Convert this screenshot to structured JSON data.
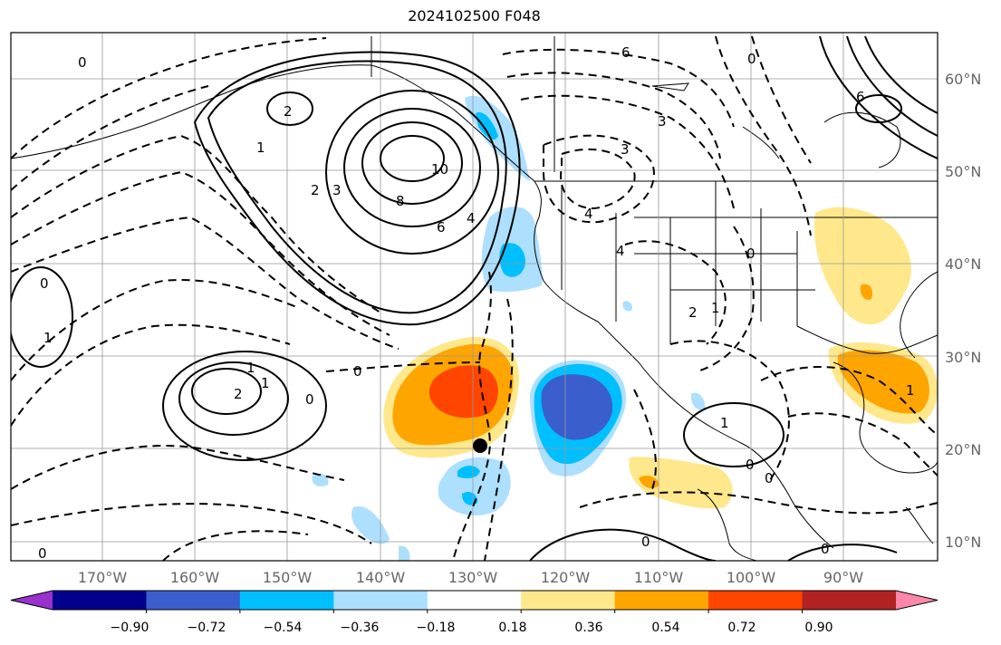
{
  "title": "2024102500 F048",
  "lat_labels": [
    "60°N",
    "50°N",
    "40°N",
    "30°N",
    "20°N",
    "10°N"
  ],
  "lon_labels": [
    "170°W",
    "160°W",
    "150°W",
    "140°W",
    "130°W",
    "120°W",
    "110°W",
    "100°W",
    "90°W"
  ],
  "colorbar": {
    "colors": [
      "#9932CC",
      "#00008B",
      "#3A5FCD",
      "#00BFFF",
      "#ADDFFF",
      "#FFFFFF",
      "#FFE88C",
      "#FFA500",
      "#FF4500",
      "#B22222",
      "#FF88AA"
    ],
    "tick_labels": [
      "−0.90",
      "−0.72",
      "−0.54",
      "−0.36",
      "−0.18",
      "0.18",
      "0.36",
      "0.54",
      "0.72",
      "0.90"
    ]
  },
  "contour_labels": [
    "0",
    "0",
    "1",
    "2",
    "3",
    "4",
    "6",
    "8",
    "10",
    "2",
    "1",
    "0",
    "1",
    "2",
    "0",
    "0",
    "1",
    "0",
    "0",
    "0",
    "4",
    "6",
    "3",
    "0",
    "3",
    "4",
    "6",
    "2",
    "1",
    "0",
    "1",
    "0",
    "1"
  ],
  "colors": {
    "marker": "#000000",
    "contour": "#000000",
    "grid": "#999999",
    "coast": "#000000"
  }
}
